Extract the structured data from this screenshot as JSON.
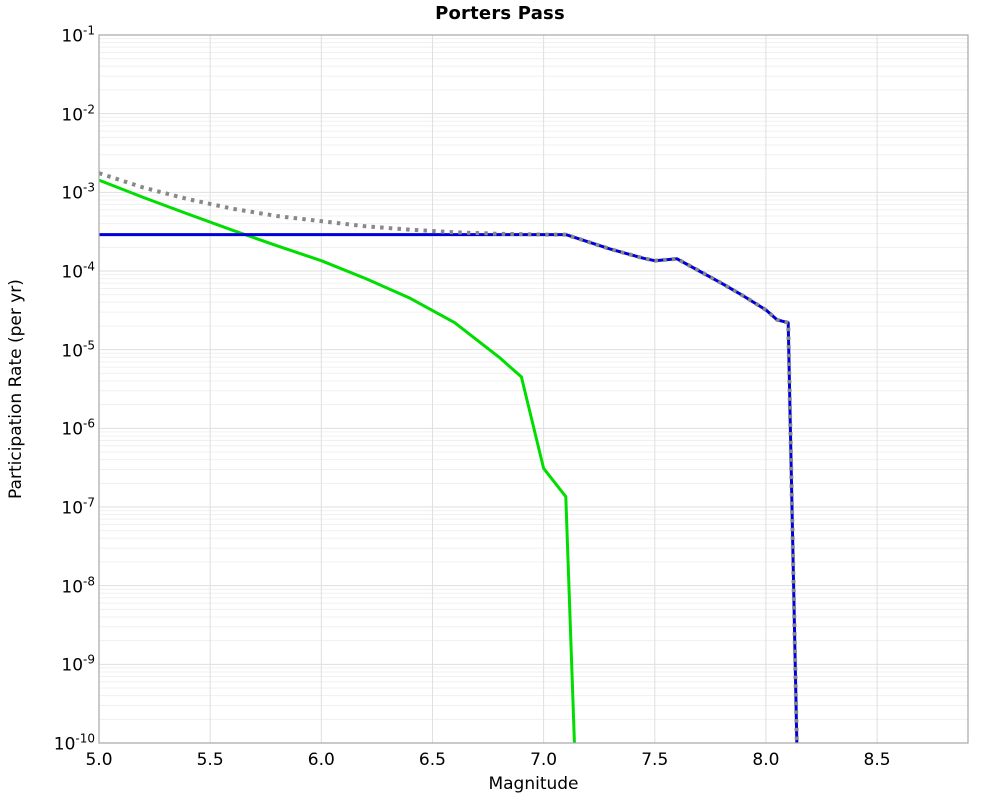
{
  "chart_data": {
    "type": "line",
    "title": "Porters Pass",
    "xlabel": "Magnitude",
    "ylabel": "Participation Rate (per yr)",
    "xlim": [
      5.0,
      8.909
    ],
    "ylim": [
      1e-10,
      0.1
    ],
    "y_scale": "log",
    "grid": true,
    "legend": "none",
    "x_ticks": [
      5.0,
      5.5,
      6.0,
      6.5,
      7.0,
      7.5,
      8.0,
      8.5
    ],
    "x_tick_labels": [
      "5.0",
      "5.5",
      "6.0",
      "6.5",
      "7.0",
      "7.5",
      "8.0",
      "8.5"
    ],
    "y_tick_exponents": [
      -1,
      -2,
      -3,
      -4,
      -5,
      -6,
      -7,
      -8,
      -9,
      -10
    ],
    "colors": {
      "total_dotted": "#888888",
      "blue_series": "#0000dd",
      "green_series": "#00dd00",
      "grid_major": "#dfdfdf",
      "grid_minor": "#f0f0f0",
      "plot_border": "#a6a6a6"
    },
    "series": [
      {
        "name": "green-solid",
        "color": "#00dd00",
        "style": "solid",
        "points": [
          [
            5.0,
            0.00143
          ],
          [
            5.2,
            0.00086
          ],
          [
            5.4,
            0.00053
          ],
          [
            5.6,
            0.00033
          ],
          [
            5.8,
            0.00021
          ],
          [
            6.0,
            0.000135
          ],
          [
            6.2,
            8e-05
          ],
          [
            6.4,
            4.5e-05
          ],
          [
            6.6,
            2.2e-05
          ],
          [
            6.8,
            8e-06
          ],
          [
            6.9,
            4.5e-06
          ],
          [
            7.0,
            3.1e-07
          ],
          [
            7.1,
            1.35e-07
          ],
          [
            7.14,
            8e-11
          ]
        ]
      },
      {
        "name": "blue-solid",
        "color": "#0000dd",
        "style": "solid",
        "points": [
          [
            5.0,
            0.00029
          ],
          [
            7.1,
            0.00029
          ],
          [
            7.3,
            0.00019
          ],
          [
            7.45,
            0.000145
          ],
          [
            7.5,
            0.000135
          ],
          [
            7.6,
            0.000143
          ],
          [
            7.7,
            0.0001
          ],
          [
            7.8,
            7e-05
          ],
          [
            7.9,
            4.8e-05
          ],
          [
            8.0,
            3.2e-05
          ],
          [
            8.05,
            2.4e-05
          ],
          [
            8.1,
            2.2e-05
          ],
          [
            8.14,
            8e-11
          ]
        ]
      },
      {
        "name": "gray-dotted-total",
        "color": "#888888",
        "style": "dotted",
        "points": [
          [
            5.0,
            0.00175
          ],
          [
            5.2,
            0.00115
          ],
          [
            5.4,
            0.00082
          ],
          [
            5.6,
            0.00062
          ],
          [
            5.8,
            0.0005
          ],
          [
            6.0,
            0.00043
          ],
          [
            6.2,
            0.00037
          ],
          [
            6.4,
            0.000335
          ],
          [
            6.6,
            0.00031
          ],
          [
            6.8,
            0.000297
          ],
          [
            7.0,
            0.00029
          ],
          [
            7.1,
            0.00029
          ],
          [
            7.3,
            0.00019
          ],
          [
            7.45,
            0.000145
          ],
          [
            7.5,
            0.000135
          ],
          [
            7.6,
            0.000143
          ],
          [
            7.7,
            0.0001
          ],
          [
            7.8,
            7e-05
          ],
          [
            7.9,
            4.8e-05
          ],
          [
            8.0,
            3.2e-05
          ],
          [
            8.05,
            2.4e-05
          ],
          [
            8.1,
            2.2e-05
          ],
          [
            8.14,
            8e-11
          ]
        ]
      }
    ]
  }
}
